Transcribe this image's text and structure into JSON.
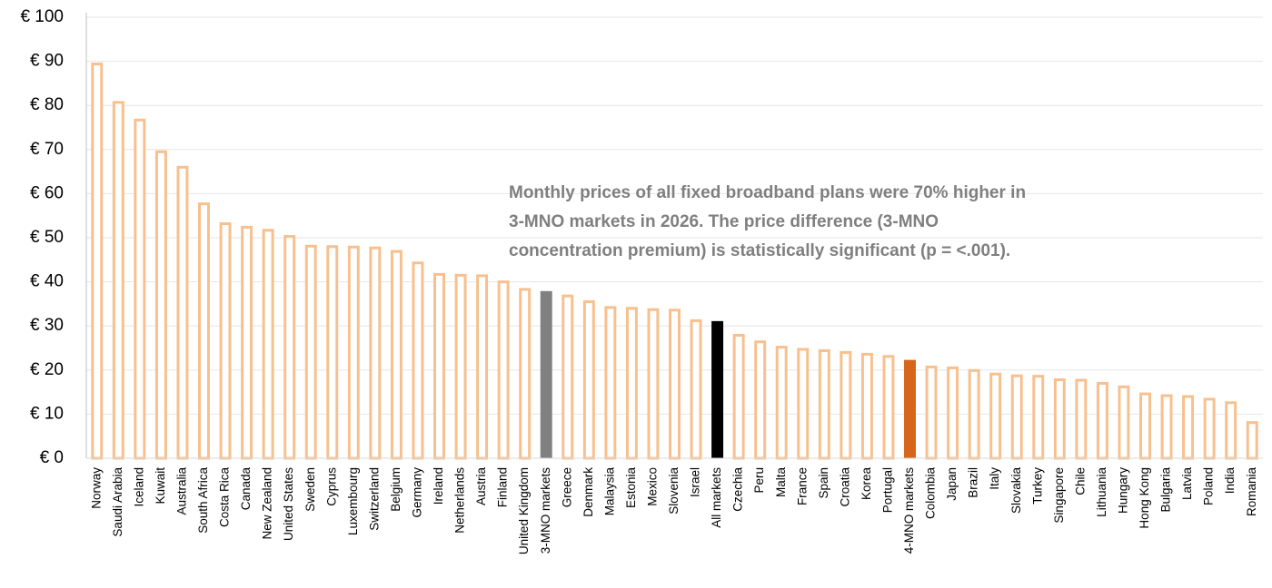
{
  "chart_data": {
    "type": "bar",
    "categories": [
      "Norway",
      "Saudi Arabia",
      "Iceland",
      "Kuwait",
      "Australia",
      "South Africa",
      "Costa Rica",
      "Canada",
      "New Zealand",
      "United States",
      "Sweden",
      "Cyprus",
      "Luxembourg",
      "Switzerland",
      "Belgium",
      "Germany",
      "Ireland",
      "Netherlands",
      "Austria",
      "Finland",
      "United Kingdom",
      "3-MNO markets",
      "Greece",
      "Denmark",
      "Malaysia",
      "Estonia",
      "Mexico",
      "Slovenia",
      "Israel",
      "All markets",
      "Czechia",
      "Peru",
      "Malta",
      "France",
      "Spain",
      "Croatia",
      "Korea",
      "Portugal",
      "4-MNO markets",
      "Colombia",
      "Japan",
      "Brazil",
      "Italy",
      "Slovakia",
      "Turkey",
      "Singapore",
      "Chile",
      "Lithuania",
      "Hungary",
      "Hong Kong",
      "Bulgaria",
      "Latvia",
      "Poland",
      "India",
      "Romania"
    ],
    "values": [
      89.7,
      81,
      77,
      69.8,
      66.3,
      58,
      53.5,
      52.7,
      52,
      50.6,
      48.4,
      48.3,
      48.2,
      48,
      47.2,
      44.6,
      42,
      41.8,
      41.7,
      40.3,
      38.6,
      37.9,
      37.1,
      35.8,
      34.5,
      34.3,
      34,
      33.9,
      31.5,
      31.1,
      28.2,
      26.7,
      25.5,
      25,
      24.7,
      24.3,
      23.9,
      23.4,
      22.3,
      21,
      20.8,
      20.2,
      19.4,
      19,
      18.9,
      18.1,
      18,
      17.3,
      16.5,
      14.9,
      14.5,
      14.3,
      13.7,
      12.9,
      8.4
    ],
    "color": "#f7c08e",
    "highlight_colors": {
      "3-MNO markets": "#808080",
      "All markets": "#000000",
      "4-MNO markets": "#d7661c"
    },
    "ylim": [
      0,
      100
    ],
    "yticks": [
      {
        "value": 0,
        "label": "€ 0"
      },
      {
        "value": 10,
        "label": "€ 10"
      },
      {
        "value": 20,
        "label": "€ 20"
      },
      {
        "value": 30,
        "label": "€ 30"
      },
      {
        "value": 40,
        "label": "€ 40"
      },
      {
        "value": 50,
        "label": "€ 50"
      },
      {
        "value": 60,
        "label": "€ 60"
      },
      {
        "value": 70,
        "label": "€ 70"
      },
      {
        "value": 80,
        "label": "€ 80"
      },
      {
        "value": 90,
        "label": "€ 90"
      },
      {
        "value": 100,
        "label": "€ 100"
      }
    ],
    "grid": true,
    "annotation": [
      "Monthly prices of all fixed broadband plans were 70% higher in",
      "3-MNO markets in 2026. The price difference (3-MNO",
      "concentration premium) is statistically significant (p = <.001)."
    ]
  }
}
